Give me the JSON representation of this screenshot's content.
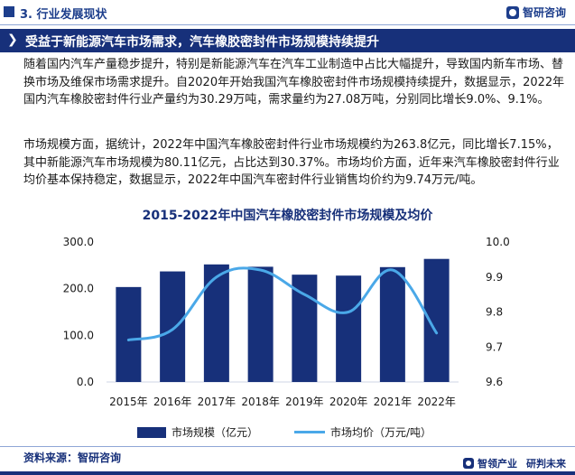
{
  "section": {
    "title": "3. 行业发展现状"
  },
  "brand": {
    "name": "智研咨询"
  },
  "headline": {
    "chevron": "❯",
    "text": "受益于新能源汽车市场需求，汽车橡胶密封件市场规模持续提升"
  },
  "paragraphs": [
    "随着国内汽车产量稳步提升，特别是新能源汽车在汽车工业制造中占比大幅提升，导致国内新车市场、替换市场及维保市场需求提升。自2020年开始我国汽车橡胶密封件市场规模持续提升，数据显示，2022年国内汽车橡胶密封件行业产量约为30.29万吨，需求量约为27.08万吨，分别同比增长9.0%、9.1%。",
    "市场规模方面，据统计，2022年中国汽车橡胶密封件行业市场规模约为263.8亿元，同比增长7.15%，其中新能源汽车市场规模为80.11亿元，占比达到30.37%。市场均价方面，近年来汽车橡胶密封件行业均价基本保持稳定，数据显示，2022年中国汽车密封件行业销售均价约为9.74万元/吨。"
  ],
  "chart_data": {
    "type": "bar",
    "title": "2015-2022年中国汽车橡胶密封件市场规模及均价",
    "categories": [
      "2015年",
      "2016年",
      "2017年",
      "2018年",
      "2019年",
      "2020年",
      "2021年",
      "2022年"
    ],
    "series": [
      {
        "name": "市场规模（亿元）",
        "type": "bar",
        "axis": "left",
        "color": "#17307a",
        "values": [
          203.5,
          237.0,
          252.0,
          247.0,
          230.0,
          228.0,
          246.2,
          263.8
        ]
      },
      {
        "name": "市场均价（万元/吨）",
        "type": "line",
        "axis": "right",
        "color": "#4aa8e8",
        "values": [
          9.72,
          9.75,
          9.9,
          9.92,
          9.85,
          9.8,
          9.92,
          9.74
        ]
      }
    ],
    "y_left": {
      "min": 0,
      "max": 300,
      "ticks": [
        "0.0",
        "100.0",
        "200.0",
        "300.0"
      ]
    },
    "y_right": {
      "min": 9.6,
      "max": 10.0,
      "ticks": [
        "9.6",
        "9.7",
        "9.8",
        "9.9",
        "10.0"
      ]
    },
    "legend": {
      "position": "bottom"
    },
    "grid": false
  },
  "footer": {
    "source": "资料来源：智研咨询",
    "brand_left": "智领产业",
    "brand_right": "研判未来"
  }
}
